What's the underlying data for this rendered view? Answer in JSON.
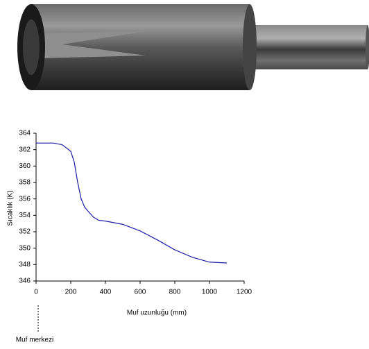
{
  "chart_data": {
    "type": "line",
    "xlabel": "Muf uzunluğu (mm)",
    "ylabel": "Sıcaklık (K)",
    "annotation": "Muf merkezi",
    "x": [
      0,
      100,
      150,
      200,
      220,
      240,
      260,
      280,
      300,
      330,
      360,
      400,
      500,
      600,
      700,
      800,
      900,
      1000,
      1100
    ],
    "values": [
      362.8,
      362.8,
      362.6,
      361.8,
      360.5,
      358,
      356,
      355,
      354.5,
      353.8,
      353.4,
      353.3,
      352.9,
      352.1,
      351.0,
      349.8,
      348.9,
      348.3,
      348.2
    ],
    "color": "#1c1ca8",
    "xlim": [
      0,
      1200
    ],
    "xticks": [
      0,
      200,
      400,
      600,
      800,
      1000,
      1200
    ],
    "ylim": [
      346,
      364
    ],
    "yticks": [
      346,
      348,
      350,
      352,
      354,
      356,
      358,
      360,
      362,
      364
    ],
    "grid": false
  }
}
